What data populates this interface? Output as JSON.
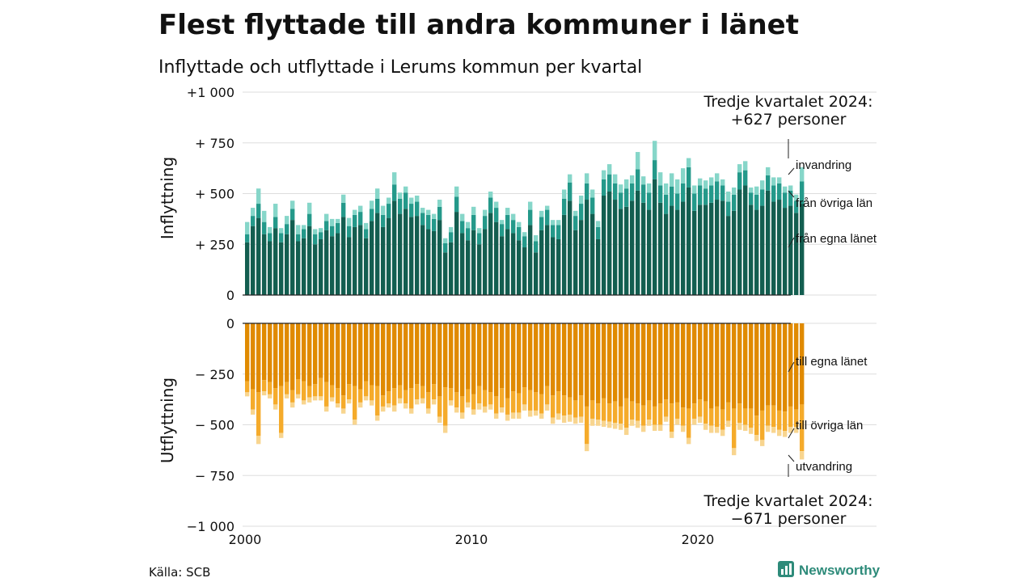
{
  "chart_data": {
    "type": "bar",
    "title": "Flest flyttade till andra kommuner i länet",
    "subtitle": "Inflyttade och utflyttade i Lerums kommun per kvartal",
    "source": "Källa: SCB",
    "brand": "Newsworthy",
    "x_tick_labels": [
      "2000",
      "2010",
      "2020"
    ],
    "x_tick_years": [
      2000,
      2010,
      2020
    ],
    "start_year": 2000,
    "panels": {
      "in": {
        "axis_label": "Inflyttning",
        "ylim": [
          0,
          1000
        ],
        "y_ticks": [
          0,
          250,
          500,
          750,
          1000
        ],
        "y_tick_labels": [
          "0",
          "+  250",
          "+  500",
          "+  750",
          "+1 000"
        ],
        "series_labels": [
          "från egna länet",
          "från övriga län",
          "invandring"
        ],
        "colors": [
          "#135e50",
          "#24998a",
          "#86d6c9"
        ],
        "callout": [
          "Tredje kvartalet 2024:",
          "+627 personer"
        ]
      },
      "out": {
        "axis_label": "Utflyttning",
        "ylim": [
          -1000,
          0
        ],
        "y_ticks": [
          0,
          -250,
          -500,
          -750,
          -1000
        ],
        "y_tick_labels": [
          "0",
          "−  250",
          "−  500",
          "−  750",
          "−1 000"
        ],
        "series_labels": [
          "till egna länet",
          "till övriga län",
          "utvandring"
        ],
        "colors": [
          "#e08a00",
          "#f5ab2b",
          "#f8d58f"
        ],
        "callout": [
          "Tredje kvartalet 2024:",
          "−671 personer"
        ]
      }
    },
    "x": [
      "2000 Q1",
      "2000 Q2",
      "2000 Q3",
      "2000 Q4",
      "2001 Q1",
      "2001 Q2",
      "2001 Q3",
      "2001 Q4",
      "2002 Q1",
      "2002 Q2",
      "2002 Q3",
      "2002 Q4",
      "2003 Q1",
      "2003 Q2",
      "2003 Q3",
      "2003 Q4",
      "2004 Q1",
      "2004 Q2",
      "2004 Q3",
      "2004 Q4",
      "2005 Q1",
      "2005 Q2",
      "2005 Q3",
      "2005 Q4",
      "2006 Q1",
      "2006 Q2",
      "2006 Q3",
      "2006 Q4",
      "2007 Q1",
      "2007 Q2",
      "2007 Q3",
      "2007 Q4",
      "2008 Q1",
      "2008 Q2",
      "2008 Q3",
      "2008 Q4",
      "2009 Q1",
      "2009 Q2",
      "2009 Q3",
      "2009 Q4",
      "2010 Q1",
      "2010 Q2",
      "2010 Q3",
      "2010 Q4",
      "2011 Q1",
      "2011 Q2",
      "2011 Q3",
      "2011 Q4",
      "2012 Q1",
      "2012 Q2",
      "2012 Q3",
      "2012 Q4",
      "2013 Q1",
      "2013 Q2",
      "2013 Q3",
      "2013 Q4",
      "2014 Q1",
      "2014 Q2",
      "2014 Q3",
      "2014 Q4",
      "2015 Q1",
      "2015 Q2",
      "2015 Q3",
      "2015 Q4",
      "2016 Q1",
      "2016 Q2",
      "2016 Q3",
      "2016 Q4",
      "2017 Q1",
      "2017 Q2",
      "2017 Q3",
      "2017 Q4",
      "2018 Q1",
      "2018 Q2",
      "2018 Q3",
      "2018 Q4",
      "2019 Q1",
      "2019 Q2",
      "2019 Q3",
      "2019 Q4",
      "2020 Q1",
      "2020 Q2",
      "2020 Q3",
      "2020 Q4",
      "2021 Q1",
      "2021 Q2",
      "2021 Q3",
      "2021 Q4",
      "2022 Q1",
      "2022 Q2",
      "2022 Q3",
      "2022 Q4",
      "2023 Q1",
      "2023 Q2",
      "2023 Q3",
      "2023 Q4",
      "2024 Q1",
      "2024 Q2",
      "2024 Q3"
    ],
    "series": [
      {
        "name": "från egna länet",
        "panel": "in",
        "values": [
          260,
          340,
          380,
          300,
          265,
          330,
          260,
          300,
          370,
          265,
          280,
          340,
          250,
          275,
          320,
          290,
          305,
          385,
          285,
          335,
          345,
          280,
          365,
          405,
          335,
          380,
          465,
          400,
          425,
          385,
          390,
          345,
          325,
          315,
          370,
          210,
          260,
          410,
          305,
          270,
          320,
          250,
          325,
          405,
          360,
          290,
          325,
          305,
          270,
          235,
          345,
          210,
          320,
          345,
          285,
          275,
          395,
          465,
          320,
          370,
          470,
          400,
          275,
          490,
          510,
          470,
          425,
          435,
          465,
          515,
          455,
          420,
          570,
          455,
          400,
          440,
          420,
          460,
          530,
          415,
          445,
          445,
          455,
          470,
          465,
          390,
          415,
          520,
          540,
          445,
          420,
          440,
          515,
          460,
          470,
          430,
          440,
          405,
          450
        ]
      },
      {
        "name": "från övriga län",
        "panel": "in",
        "values": [
          40,
          50,
          70,
          60,
          40,
          55,
          45,
          50,
          55,
          35,
          45,
          60,
          50,
          35,
          45,
          50,
          50,
          70,
          55,
          60,
          65,
          45,
          60,
          70,
          60,
          70,
          80,
          75,
          80,
          65,
          70,
          60,
          70,
          60,
          65,
          45,
          50,
          75,
          60,
          60,
          75,
          55,
          65,
          75,
          70,
          60,
          70,
          65,
          65,
          55,
          75,
          55,
          65,
          75,
          60,
          70,
          80,
          90,
          70,
          80,
          80,
          80,
          60,
          80,
          85,
          80,
          80,
          90,
          85,
          105,
          90,
          85,
          95,
          85,
          95,
          95,
          80,
          90,
          100,
          85,
          95,
          80,
          85,
          90,
          75,
          70,
          80,
          85,
          75,
          60,
          75,
          80,
          75,
          80,
          80,
          75,
          75,
          60,
          110
        ]
      },
      {
        "name": "invandring",
        "panel": "in",
        "values": [
          60,
          40,
          75,
          55,
          30,
          65,
          25,
          40,
          40,
          45,
          20,
          55,
          25,
          20,
          35,
          35,
          20,
          40,
          40,
          25,
          30,
          30,
          40,
          50,
          45,
          30,
          60,
          30,
          30,
          30,
          30,
          25,
          25,
          25,
          35,
          25,
          25,
          50,
          35,
          30,
          40,
          25,
          30,
          30,
          30,
          20,
          35,
          30,
          25,
          20,
          40,
          30,
          30,
          20,
          25,
          25,
          45,
          40,
          25,
          40,
          50,
          40,
          30,
          45,
          50,
          45,
          40,
          45,
          40,
          85,
          40,
          45,
          95,
          65,
          55,
          65,
          70,
          75,
          45,
          40,
          35,
          40,
          40,
          40,
          30,
          50,
          35,
          40,
          45,
          25,
          40,
          45,
          40,
          40,
          30,
          30,
          25,
          30,
          70
        ]
      },
      {
        "name": "till egna länet",
        "panel": "out",
        "values": [
          -285,
          -325,
          -340,
          -280,
          -290,
          -320,
          -310,
          -290,
          -330,
          -275,
          -285,
          -310,
          -300,
          -270,
          -290,
          -305,
          -320,
          -355,
          -300,
          -310,
          -325,
          -285,
          -305,
          -310,
          -355,
          -335,
          -320,
          -305,
          -330,
          -320,
          -300,
          -310,
          -340,
          -300,
          -360,
          -315,
          -320,
          -340,
          -360,
          -325,
          -350,
          -310,
          -330,
          -340,
          -360,
          -320,
          -370,
          -335,
          -345,
          -315,
          -330,
          -340,
          -350,
          -310,
          -355,
          -335,
          -355,
          -365,
          -380,
          -355,
          -410,
          -380,
          -395,
          -370,
          -395,
          -385,
          -410,
          -370,
          -385,
          -395,
          -405,
          -380,
          -410,
          -395,
          -375,
          -395,
          -390,
          -415,
          -420,
          -395,
          -375,
          -385,
          -420,
          -410,
          -425,
          -390,
          -420,
          -395,
          -420,
          -420,
          -455,
          -430,
          -405,
          -405,
          -430,
          -435,
          -410,
          -425,
          -400
        ]
      },
      {
        "name": "till övriga län",
        "panel": "out",
        "values": [
          -55,
          -100,
          -215,
          -55,
          -60,
          -80,
          -230,
          -60,
          -60,
          -75,
          -95,
          -55,
          -60,
          -90,
          -120,
          -60,
          -75,
          -65,
          -75,
          -165,
          -65,
          -75,
          -75,
          -145,
          -55,
          -60,
          -85,
          -65,
          -65,
          -100,
          -75,
          -60,
          -80,
          -75,
          -100,
          -190,
          -60,
          -75,
          -80,
          -65,
          -75,
          -85,
          -80,
          -60,
          -85,
          -95,
          -80,
          -105,
          -95,
          -85,
          -100,
          -90,
          -95,
          -90,
          -110,
          -110,
          -100,
          -85,
          -85,
          -105,
          -185,
          -90,
          -80,
          -110,
          -90,
          -105,
          -85,
          -145,
          -90,
          -85,
          -100,
          -95,
          -90,
          -105,
          -85,
          -140,
          -80,
          -90,
          -145,
          -75,
          -85,
          -110,
          -85,
          -100,
          -100,
          -90,
          -195,
          -95,
          -80,
          -95,
          -95,
          -145,
          -100,
          -105,
          -95,
          -95,
          -100,
          -85,
          -230
        ]
      },
      {
        "name": "utvandring",
        "panel": "out",
        "values": [
          -20,
          -25,
          -40,
          -20,
          -20,
          -25,
          -25,
          -20,
          -25,
          -20,
          -20,
          -25,
          -20,
          -20,
          -25,
          -20,
          -20,
          -25,
          -20,
          -25,
          -25,
          -20,
          -25,
          -25,
          -25,
          -20,
          -30,
          -25,
          -25,
          -25,
          -25,
          -25,
          -25,
          -25,
          -30,
          -35,
          -25,
          -25,
          -30,
          -25,
          -25,
          -30,
          -30,
          -25,
          -25,
          -25,
          -30,
          -30,
          -30,
          -30,
          -30,
          -25,
          -25,
          -30,
          -30,
          -30,
          -35,
          -35,
          -30,
          -30,
          -35,
          -35,
          -30,
          -30,
          -30,
          -30,
          -30,
          -35,
          -30,
          -35,
          -30,
          -30,
          -30,
          -30,
          -25,
          -30,
          -30,
          -30,
          -30,
          -30,
          -30,
          -30,
          -35,
          -30,
          -30,
          -30,
          -35,
          -35,
          -30,
          -30,
          -30,
          -30,
          -30,
          -30,
          -30,
          -30,
          -30,
          -30,
          -41
        ]
      }
    ]
  }
}
